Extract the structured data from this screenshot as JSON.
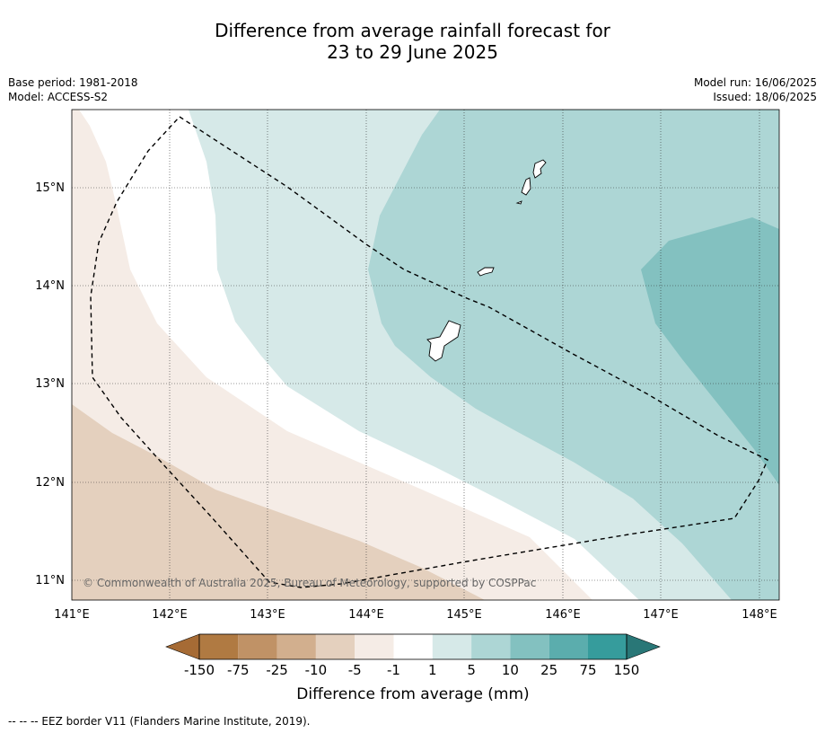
{
  "title_line1": "Difference from average rainfall forecast for",
  "title_line2": "23 to 29 June 2025",
  "meta_left": {
    "base_period": "Base period: 1981-2018",
    "model": "Model: ACCESS-S2"
  },
  "meta_right": {
    "model_run": "Model run: 16/06/2025",
    "issued": "Issued: 18/06/2025"
  },
  "map": {
    "lon_ticks": [
      "141°E",
      "142°E",
      "143°E",
      "144°E",
      "145°E",
      "146°E",
      "147°E",
      "148°E"
    ],
    "lat_ticks": [
      "15°N",
      "14°N",
      "13°N",
      "12°N",
      "11°N"
    ],
    "copyright": "© Commonwealth of Australia 2025, Bureau of Meteorology, supported by COSPPac"
  },
  "colorbar": {
    "labels": [
      "-150",
      "-75",
      "-25",
      "-10",
      "-5",
      "-1",
      "1",
      "5",
      "10",
      "25",
      "75",
      "150"
    ],
    "colors": [
      "#A66B35",
      "#B07A42",
      "#C09266",
      "#D2AF8E",
      "#E4D0BE",
      "#F5ECE6",
      "#FFFFFF",
      "#D6E9E8",
      "#ADD6D5",
      "#83C1C0",
      "#5BADAD",
      "#369C9C",
      "#297777"
    ],
    "title": "Difference from average (mm)"
  },
  "footer": "--  --  -- EEZ border V11 (Flanders Marine Institute, 2019)."
}
